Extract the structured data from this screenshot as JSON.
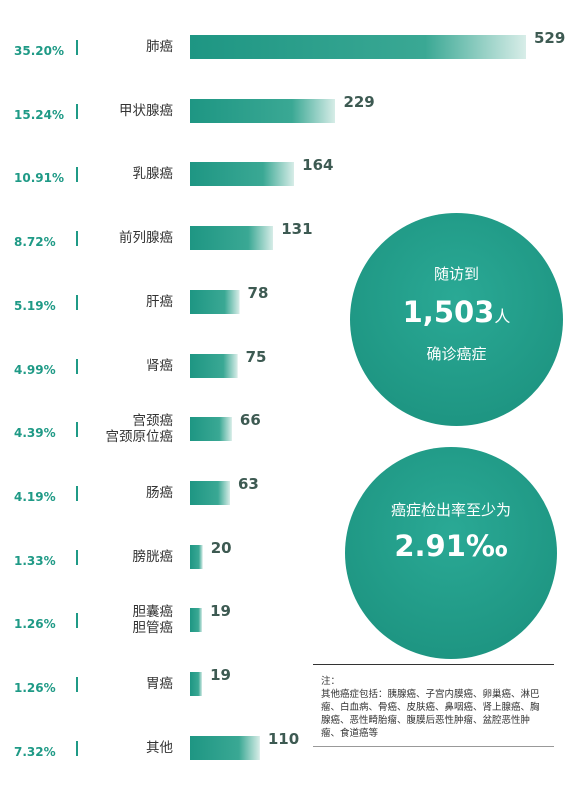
{
  "chart_data": {
    "type": "bar",
    "orientation": "horizontal",
    "categories": [
      [
        "肺癌"
      ],
      [
        "甲状腺癌"
      ],
      [
        "乳腺癌"
      ],
      [
        "前列腺癌"
      ],
      [
        "肝癌"
      ],
      [
        "肾癌"
      ],
      [
        "宫颈癌",
        "宫颈原位癌"
      ],
      [
        "肠癌"
      ],
      [
        "膀胱癌"
      ],
      [
        "胆囊癌",
        "胆管癌"
      ],
      [
        "胃癌"
      ],
      [
        "其他"
      ]
    ],
    "values": [
      529,
      229,
      164,
      131,
      78,
      75,
      66,
      63,
      20,
      19,
      19,
      110
    ],
    "percentages": [
      "35.20%",
      "15.24%",
      "10.91%",
      "8.72%",
      "5.19%",
      "4.99%",
      "4.39%",
      "4.19%",
      "1.33%",
      "1.26%",
      "1.26%",
      "7.32%"
    ],
    "xlim": [
      0,
      529
    ],
    "grid": false,
    "bar_color": "#1f9a86"
  },
  "summary": {
    "followup_prefix": "随访到",
    "followup_number": "1,503",
    "followup_unit": "人",
    "followup_suffix": "确诊癌症",
    "rate_label": "癌症检出率至少为",
    "rate_value": "2.91‰"
  },
  "note": {
    "title": "注：",
    "text": "其他癌症包括：胰腺癌、子宫内膜癌、卵巢癌、淋巴瘤、白血病、骨癌、皮肤癌、鼻咽癌、肾上腺癌、胸腺癌、恶性畸胎瘤、腹膜后恶性肿瘤、盆腔恶性肿瘤、食道癌等"
  },
  "colors": {
    "accent": "#1f9a86",
    "circle": "#1f9a86"
  }
}
